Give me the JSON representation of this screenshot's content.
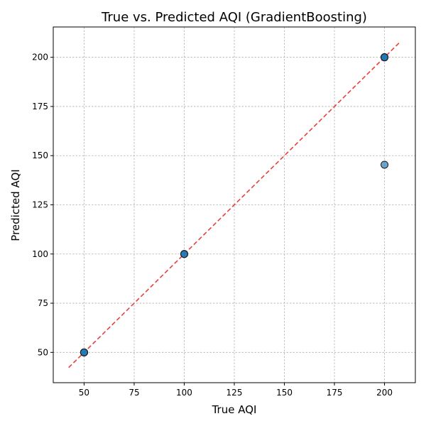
{
  "chart_data": {
    "type": "scatter",
    "title": "True vs. Predicted AQI (GradientBoosting)",
    "xlabel": "True AQI",
    "ylabel": "Predicted AQI",
    "xlim": [
      34.6,
      215.4
    ],
    "ylim": [
      34.6,
      215.4
    ],
    "xticks": [
      50,
      75,
      100,
      125,
      150,
      175,
      200
    ],
    "yticks": [
      50,
      75,
      100,
      125,
      150,
      175,
      200
    ],
    "grid": true,
    "point_color": "#1f77b4",
    "reference_line": {
      "style": "dashed",
      "color": "#e8403a",
      "from": 42.3,
      "to": 207.7
    },
    "points": [
      {
        "x": 50,
        "y": 50
      },
      {
        "x": 50,
        "y": 50
      },
      {
        "x": 50,
        "y": 50
      },
      {
        "x": 100,
        "y": 100
      },
      {
        "x": 100,
        "y": 100
      },
      {
        "x": 100,
        "y": 100
      },
      {
        "x": 200,
        "y": 200
      },
      {
        "x": 200,
        "y": 200
      },
      {
        "x": 200,
        "y": 200
      },
      {
        "x": 200,
        "y": 200
      },
      {
        "x": 200,
        "y": 145.4
      }
    ]
  }
}
